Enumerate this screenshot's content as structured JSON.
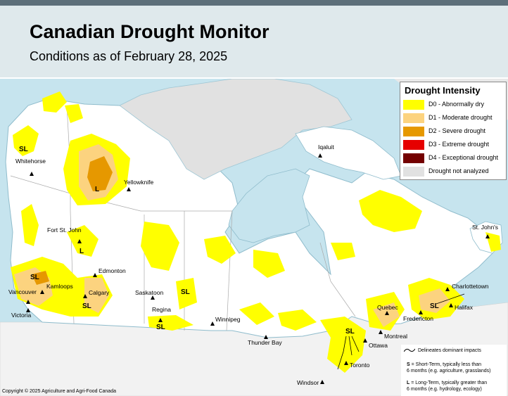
{
  "header": {
    "title": "Canadian Drought Monitor",
    "subtitle": "Conditions as of February 28, 2025"
  },
  "legend": {
    "title": "Drought Intensity",
    "items": [
      {
        "label": "D0 - Abnormally dry",
        "color": "#ffff00"
      },
      {
        "label": "D1 - Moderate drought",
        "color": "#fcd37f"
      },
      {
        "label": "D2 - Severe drought",
        "color": "#e69800"
      },
      {
        "label": "D3 - Extreme drought",
        "color": "#e60000"
      },
      {
        "label": "D4 - Exceptional drought",
        "color": "#730000"
      },
      {
        "label": "Drought not analyzed",
        "color": "#e1e1e1"
      }
    ]
  },
  "notes": {
    "line_key": "Delineates dominant impacts",
    "short_term_prefix": "S",
    "short_term_text": " = Short-Term, typically less than",
    "short_term_text2": "6 months (e.g. agriculture, grasslands)",
    "long_term_prefix": "L",
    "long_term_text": " = Long-Term, typically greater  than",
    "long_term_text2": "6 months (e.g. hydrology, ecology)"
  },
  "copyright": "Copyright © 2025 Agriculture and Agri-Food Canada",
  "cities": {
    "whitehorse": "Whitehorse",
    "yellowknife": "Yellowknife",
    "iqaluit": "Iqaluit",
    "fort_st_john": "Fort St. John",
    "edmonton": "Edmonton",
    "kamloops": "Kamloops",
    "calgary": "Calgary",
    "vancouver": "Vancouver",
    "victoria": "Victoria",
    "saskatoon": "Saskatoon",
    "regina": "Regina",
    "winnipeg": "Winnipeg",
    "thunder_bay": "Thunder Bay",
    "toronto": "Toronto",
    "windsor": "Windsor",
    "ottawa": "Ottawa",
    "montreal": "Montreal",
    "quebec": "Quebec",
    "fredericton": "Fredericton",
    "halifax": "Halifax",
    "charlottetown": "Charlottetown",
    "st_johns": "St. John's"
  },
  "impact_marks": {
    "sl": "SL",
    "l": "L"
  },
  "colors": {
    "water": "#c6e4ee",
    "land": "#ffffff",
    "not_analyzed": "#e1e1e1",
    "us_land": "#f2f2f2",
    "header_bg": "#dfe9ec"
  }
}
